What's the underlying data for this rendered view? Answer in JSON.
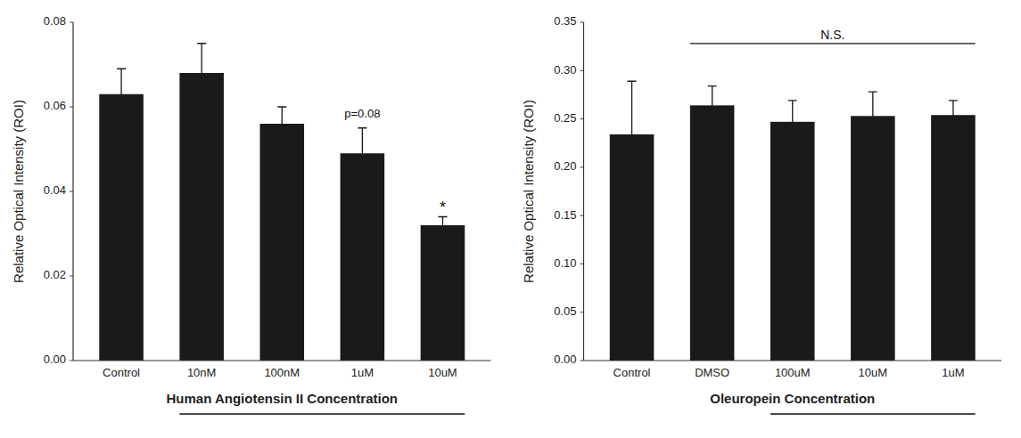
{
  "chart_data": [
    {
      "type": "bar",
      "categories": [
        "Control",
        "10nM",
        "100nM",
        "1uM",
        "10uM"
      ],
      "values": [
        0.063,
        0.068,
        0.056,
        0.049,
        0.032
      ],
      "errors": [
        0.006,
        0.007,
        0.004,
        0.006,
        0.002
      ],
      "color": "#1a1a1a",
      "ylabel": "Relative Optical Intensity (ROI)",
      "xlabel": "Human Angiotensin II Concentration",
      "ylim": [
        0,
        0.08
      ],
      "yticks": [
        {
          "value": 0,
          "label": "0.00"
        },
        0.02,
        0.04,
        0.06,
        0.08
      ],
      "annotations": [
        {
          "type": "text",
          "text": "p=0.08",
          "x": "1uM",
          "y": 0.0575
        },
        {
          "type": "text",
          "text": "*",
          "x": "10uM",
          "y": 0.035
        },
        {
          "type": "underline",
          "from": "10nM",
          "to": "10uM"
        }
      ]
    },
    {
      "type": "bar",
      "categories": [
        "Control",
        "DMSO",
        "100uM",
        "10uM",
        "1uM"
      ],
      "values": [
        0.234,
        0.264,
        0.247,
        0.253,
        0.254
      ],
      "errors": [
        0.055,
        0.02,
        0.022,
        0.025,
        0.015
      ],
      "color": "#1a1a1a",
      "ylabel": "Relative Optical Intensity (ROI)",
      "xlabel": "Oleuropein Concentration",
      "ylim": [
        0,
        0.35
      ],
      "yticks": [
        {
          "value": 0,
          "label": "0.00"
        },
        0.05,
        {
          "value": 0.1,
          "label": "0.10"
        },
        0.15,
        {
          "value": 0.2,
          "label": "0.20"
        },
        0.25,
        {
          "value": 0.3,
          "label": "0.30"
        },
        0.35
      ],
      "annotations": [
        {
          "type": "bracket",
          "text": "N.S.",
          "from": "DMSO",
          "to": "1uM",
          "y": 0.328
        },
        {
          "type": "underline",
          "from": "100uM",
          "to": "1uM"
        }
      ]
    }
  ]
}
